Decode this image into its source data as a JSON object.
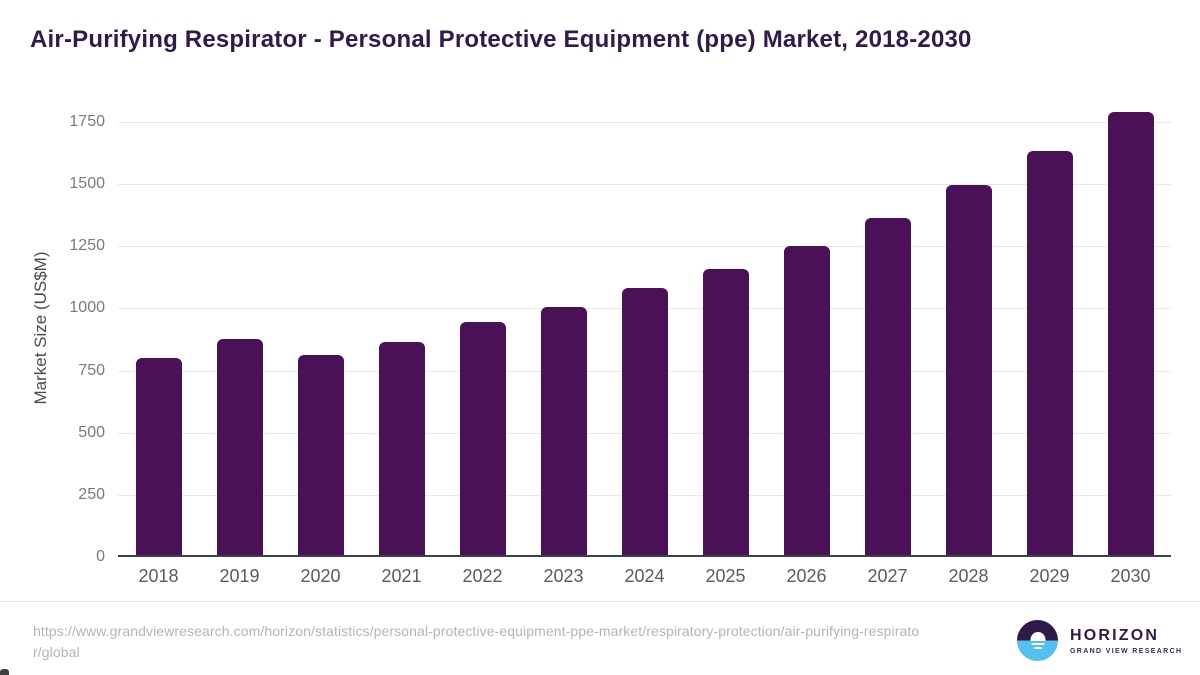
{
  "chart_data": {
    "type": "bar",
    "title": "Air-Purifying Respirator - Personal Protective Equipment (ppe) Market, 2018-2030",
    "categories": [
      "2018",
      "2019",
      "2020",
      "2021",
      "2022",
      "2023",
      "2024",
      "2025",
      "2026",
      "2027",
      "2028",
      "2029",
      "2030"
    ],
    "values": [
      800,
      876,
      812,
      863,
      945,
      1004,
      1083,
      1160,
      1250,
      1365,
      1495,
      1635,
      1792
    ],
    "xlabel": "",
    "ylabel": "Market Size (US$M)",
    "ylim": [
      0,
      1750
    ],
    "yticks": [
      0,
      250,
      500,
      750,
      1000,
      1250,
      1500,
      1750
    ],
    "grid": true,
    "legend": false,
    "bar_color": "#4a1159"
  },
  "footer": {
    "source_url": "https://www.grandviewresearch.com/horizon/statistics/personal-protective-equipment-ppe-market/respiratory-protection/air-purifying-respirator/global",
    "logo": {
      "brand": "HORIZON",
      "tagline": "GRAND VIEW RESEARCH"
    }
  },
  "theme": {
    "bar": "#4a1159",
    "grid": "#e9e9e9",
    "axis": "#39424b",
    "ytick": "#7a7a7a",
    "xtick": "#5b5b5b",
    "axis_label": "#4a4a4a",
    "title": "#2f1b4d",
    "url": "#b4b4b4",
    "separator": "#e7e7e7",
    "logo_purple": "#2e1a47",
    "logo_blue": "#54c0ed"
  }
}
